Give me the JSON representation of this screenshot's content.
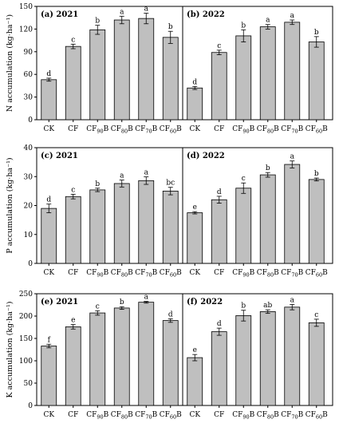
{
  "chart_data": [
    {
      "type": "bar",
      "ylabel": "N accumulation (kg·ha⁻¹)",
      "ylim": [
        0,
        150
      ],
      "yticks": [
        0,
        30,
        60,
        90,
        120,
        150
      ],
      "categories": [
        {
          "main": "CK",
          "sub": ""
        },
        {
          "main": "CF",
          "sub": ""
        },
        {
          "main": "CF",
          "sub": "90"
        },
        {
          "main": "CF",
          "sub": "80"
        },
        {
          "main": "CF",
          "sub": "70"
        },
        {
          "main": "CF",
          "sub": "60"
        }
      ],
      "panels": [
        {
          "title": "(a) 2021",
          "values": [
            53,
            97,
            119,
            132,
            134,
            109
          ],
          "errors": [
            2,
            3,
            6,
            5,
            7,
            8
          ],
          "letters": [
            "d",
            "c",
            "b",
            "a",
            "a",
            "b"
          ]
        },
        {
          "title": "(b) 2022",
          "values": [
            42,
            89,
            111,
            123,
            129,
            103
          ],
          "errors": [
            2,
            3,
            8,
            3,
            3,
            7
          ],
          "letters": [
            "d",
            "c",
            "b",
            "a",
            "a",
            "b"
          ]
        }
      ]
    },
    {
      "type": "bar",
      "ylabel": "P accumulation (kg·ha⁻¹)",
      "ylim": [
        0,
        40
      ],
      "yticks": [
        0,
        10,
        20,
        30,
        40
      ],
      "categories": [
        {
          "main": "CK",
          "sub": ""
        },
        {
          "main": "CF",
          "sub": ""
        },
        {
          "main": "CF",
          "sub": "90"
        },
        {
          "main": "CF",
          "sub": "80"
        },
        {
          "main": "CF",
          "sub": "70"
        },
        {
          "main": "CF",
          "sub": "60"
        }
      ],
      "panels": [
        {
          "title": "(c) 2021",
          "values": [
            19,
            23.1,
            25.4,
            27.6,
            28.6,
            25
          ],
          "errors": [
            1.5,
            0.8,
            0.6,
            1.2,
            1.3,
            1.3
          ],
          "letters": [
            "d",
            "c",
            "b",
            "a",
            "a",
            "bc"
          ]
        },
        {
          "title": "(d) 2022",
          "values": [
            17.5,
            22,
            26,
            30.6,
            34.2,
            29
          ],
          "errors": [
            0.4,
            1.2,
            1.8,
            0.8,
            1.2,
            0.5
          ],
          "letters": [
            "e",
            "d",
            "c",
            "b",
            "a",
            "b"
          ]
        }
      ]
    },
    {
      "type": "bar",
      "ylabel": "K accumulation (kg·ha⁻¹)",
      "ylim": [
        0,
        250
      ],
      "yticks": [
        0,
        50,
        100,
        150,
        200,
        250
      ],
      "categories": [
        {
          "main": "CK",
          "sub": ""
        },
        {
          "main": "CF",
          "sub": ""
        },
        {
          "main": "CF",
          "sub": "90"
        },
        {
          "main": "CF",
          "sub": "80"
        },
        {
          "main": "CF",
          "sub": "70"
        },
        {
          "main": "CF",
          "sub": "60"
        }
      ],
      "panels": [
        {
          "title": "(e) 2021",
          "values": [
            133,
            176,
            207,
            218,
            231,
            190
          ],
          "errors": [
            4,
            5,
            5,
            3,
            2,
            4
          ],
          "letters": [
            "f",
            "e",
            "c",
            "b",
            "a",
            "d"
          ]
        },
        {
          "title": "(f) 2022",
          "values": [
            107,
            165,
            201,
            210,
            220,
            185
          ],
          "errors": [
            7,
            8,
            12,
            4,
            6,
            8
          ],
          "letters": [
            "e",
            "d",
            "b",
            "ab",
            "a",
            "c"
          ]
        }
      ]
    }
  ]
}
